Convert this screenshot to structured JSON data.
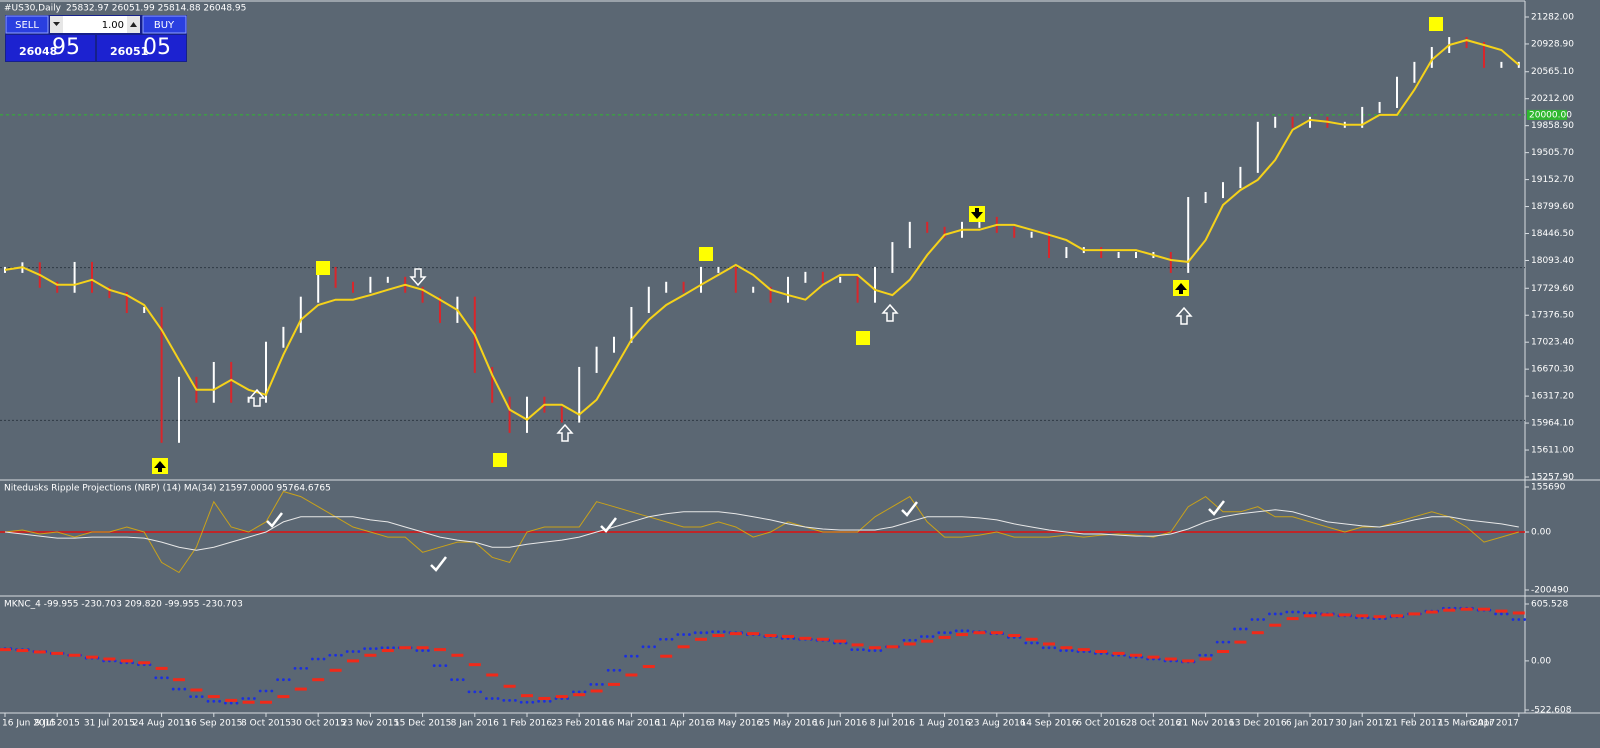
{
  "header": {
    "symbol": "#US30,Daily",
    "ohlc": "25832.97 26051.99 25814.88 26048.95"
  },
  "trade_panel": {
    "sell": "SELL",
    "buy": "BUY",
    "lot": "1.00",
    "bid_big": "26048",
    "bid_small": "95",
    "ask_big": "26051",
    "ask_small": "05"
  },
  "chart_data": [
    {
      "type": "line",
      "categories": [
        "16 Jun 2015",
        null,
        null,
        "9 Jul 2015",
        null,
        null,
        "31 Jul 2015",
        null,
        null,
        "24 Aug 2015",
        null,
        null,
        "16 Sep 2015",
        null,
        null,
        "8 Oct 2015",
        null,
        null,
        "30 Oct 2015",
        null,
        null,
        "23 Nov 2015",
        null,
        null,
        "15 Dec 2015",
        null,
        null,
        "8 Jan 2016",
        null,
        null,
        "1 Feb 2016",
        null,
        null,
        "23 Feb 2016",
        null,
        null,
        "16 Mar 2016",
        null,
        null,
        "11 Apr 2016",
        null,
        null,
        "3 May 2016",
        null,
        null,
        "25 May 2016",
        null,
        null,
        "16 Jun 2016",
        null,
        null,
        "8 Jul 2016",
        null,
        null,
        "1 Aug 2016",
        null,
        null,
        "23 Aug 2016",
        null,
        null,
        "14 Sep 2016",
        null,
        null,
        "6 Oct 2016",
        null,
        null,
        "28 Oct 2016",
        null,
        null,
        "21 Nov 2016",
        null,
        null,
        "13 Dec 2016",
        null,
        null,
        "6 Jan 2017",
        null,
        null,
        "30 Jan 2017",
        null,
        null,
        "21 Feb 2017",
        null,
        null,
        "15 Mar 2017",
        null,
        null,
        "6 Apr 2017"
      ],
      "series": [
        {
          "style": "bars",
          "color": "#ffffff",
          "down_color": "#d9262b",
          "values": [
            17970,
            18030,
            17775,
            17710,
            18035,
            17710,
            17640,
            17445,
            17445,
            15745,
            16530,
            16270,
            16725,
            16270,
            16270,
            16990,
            17185,
            17580,
            17970,
            17775,
            17710,
            17840,
            17840,
            17710,
            17580,
            17315,
            17580,
            16660,
            16270,
            15875,
            16270,
            16140,
            16010,
            16660,
            16925,
            17055,
            17445,
            17710,
            17775,
            17710,
            17970,
            17970,
            17710,
            17710,
            17580,
            17840,
            17905,
            17840,
            17840,
            17580,
            17970,
            18295,
            18560,
            18495,
            18430,
            18560,
            18625,
            18495,
            18430,
            18430,
            18165,
            18230,
            18230,
            18165,
            18165,
            18165,
            18165,
            17970,
            18885,
            18950,
            19080,
            19280,
            19870,
            19935,
            19870,
            19935,
            19870,
            19870,
            20065,
            20130,
            20460,
            20655,
            20850,
            20980,
            20915,
            20655,
            20655,
            20655
          ]
        },
        {
          "style": "line",
          "color": "#f5d21a",
          "values": [
            17970,
            18005,
            17905,
            17775,
            17775,
            17840,
            17710,
            17640,
            17510,
            17185,
            16790,
            16400,
            16400,
            16530,
            16400,
            16335,
            16860,
            17315,
            17510,
            17580,
            17580,
            17640,
            17710,
            17775,
            17710,
            17580,
            17445,
            17120,
            16595,
            16140,
            16010,
            16205,
            16205,
            16075,
            16270,
            16660,
            17055,
            17315,
            17510,
            17640,
            17775,
            17905,
            18035,
            17905,
            17710,
            17640,
            17580,
            17775,
            17905,
            17905,
            17710,
            17640,
            17840,
            18165,
            18430,
            18495,
            18495,
            18560,
            18560,
            18495,
            18430,
            18360,
            18230,
            18230,
            18230,
            18230,
            18165,
            18100,
            18075,
            18360,
            18820,
            19015,
            19150,
            19410,
            19805,
            19935,
            19910,
            19870,
            19870,
            20000,
            20000,
            20330,
            20720,
            20915,
            20980,
            20915,
            20850,
            20655
          ]
        }
      ],
      "ylim": [
        15257.9,
        21282
      ],
      "yticks": [
        {
          "value": 21282,
          "label": "21282.00"
        },
        {
          "value": 20928.9,
          "label": "20928.90"
        },
        {
          "value": 20565.1,
          "label": "20565.10"
        },
        {
          "value": 20212,
          "label": "20212.00"
        },
        {
          "value": 19858.9,
          "label": "19858.90"
        },
        {
          "value": 19505.7,
          "label": "19505.70"
        },
        {
          "value": 19152.7,
          "label": "19152.70"
        },
        {
          "value": 18799.6,
          "label": "18799.60"
        },
        {
          "value": 18446.5,
          "label": "18446.50"
        },
        {
          "value": 18093.4,
          "label": "18093.40"
        },
        {
          "value": 17729.6,
          "label": "17729.60"
        },
        {
          "value": 17376.5,
          "label": "17376.50"
        },
        {
          "value": 17023.4,
          "label": "17023.40"
        },
        {
          "value": 16670.3,
          "label": "16670.30"
        },
        {
          "value": 16317.2,
          "label": "16317.20"
        },
        {
          "value": 15964.1,
          "label": "15964.10"
        },
        {
          "value": 15611,
          "label": "15611.00"
        },
        {
          "value": 15257.9,
          "label": "15257.90"
        }
      ],
      "levels": [
        18000,
        16000
      ],
      "price_line": {
        "value": 20000,
        "label": "20000.00",
        "color": "#2fb82f"
      }
    },
    {
      "type": "line",
      "title": "Nitedusks Ripple Projections (NRP) (14) MA(34) 21597.0000 95764.6765",
      "series": [
        {
          "style": "line",
          "color": "#c9a21a",
          "values": [
            0,
            7000,
            -7000,
            0,
            -17500,
            0,
            0,
            17500,
            0,
            -105000,
            -140000,
            -52500,
            105000,
            17500,
            0,
            35000,
            140000,
            122500,
            87500,
            52500,
            17500,
            0,
            -17500,
            -17500,
            -70000,
            -52500,
            -35000,
            -35000,
            -87500,
            -105000,
            0,
            17500,
            17500,
            17500,
            105000,
            87500,
            70000,
            52500,
            35000,
            17500,
            17500,
            35000,
            17500,
            -17500,
            0,
            35000,
            17500,
            0,
            0,
            0,
            52500,
            87500,
            122500,
            35000,
            -17500,
            -17500,
            -10500,
            0,
            -17500,
            -17500,
            -17500,
            -10500,
            -17500,
            -10500,
            -7000,
            -10500,
            -17500,
            0,
            87500,
            122500,
            70000,
            70000,
            87500,
            52500,
            52500,
            35000,
            17500,
            0,
            17500,
            17500,
            35000,
            52500,
            70000,
            52500,
            17500,
            -35000,
            -17500,
            0
          ]
        },
        {
          "style": "line",
          "color": "#e8e8e8",
          "values": [
            0,
            -7000,
            -14000,
            -21000,
            -21000,
            -17500,
            -17500,
            -17500,
            -21000,
            -35000,
            -52500,
            -63000,
            -52500,
            -35000,
            -17500,
            0,
            35000,
            52500,
            52500,
            52500,
            52500,
            42000,
            35000,
            17500,
            0,
            -17500,
            -28000,
            -35000,
            -52500,
            -52500,
            -42000,
            -35000,
            -28000,
            -17500,
            0,
            17500,
            35000,
            52500,
            63000,
            70000,
            70000,
            70000,
            63000,
            52500,
            42000,
            28000,
            17500,
            10500,
            7000,
            7000,
            7000,
            17500,
            35000,
            52500,
            52500,
            52500,
            49000,
            42000,
            28000,
            17500,
            7000,
            0,
            -7000,
            -7000,
            -10500,
            -14000,
            -14000,
            -7000,
            10500,
            35000,
            52500,
            63000,
            70000,
            77000,
            70000,
            52500,
            35000,
            28000,
            21000,
            17500,
            28000,
            42000,
            52500,
            52500,
            42000,
            35000,
            28000,
            17500
          ]
        }
      ],
      "ylim": [
        -200490,
        155690
      ],
      "yticks": [
        155690,
        {
          "value": 0,
          "label": "0.00"
        },
        -200490
      ],
      "zero_line_color": "#e01010"
    },
    {
      "type": "line",
      "title": "MKNC_4 -99.955 -230.703 209.820 -99.955 -230.703",
      "series": [
        {
          "style": "dots",
          "color": "#1b2fe0",
          "values": [
            130,
            120,
            100,
            80,
            60,
            30,
            0,
            -20,
            -40,
            -180,
            -300,
            -380,
            -430,
            -450,
            -400,
            -320,
            -200,
            -80,
            20,
            60,
            100,
            130,
            140,
            140,
            110,
            -50,
            -200,
            -330,
            -400,
            -420,
            -440,
            -430,
            -400,
            -330,
            -250,
            -100,
            50,
            150,
            230,
            280,
            300,
            310,
            300,
            280,
            260,
            240,
            230,
            220,
            190,
            120,
            110,
            150,
            220,
            260,
            300,
            320,
            310,
            290,
            250,
            190,
            140,
            110,
            100,
            80,
            60,
            40,
            20,
            0,
            -10,
            60,
            200,
            340,
            440,
            500,
            520,
            510,
            500,
            480,
            460,
            450,
            470,
            500,
            530,
            560,
            560,
            540,
            500,
            440
          ]
        },
        {
          "style": "dashes",
          "color": "#f02a1a",
          "values": [
            120,
            110,
            95,
            80,
            60,
            40,
            20,
            0,
            -20,
            -80,
            -200,
            -310,
            -380,
            -420,
            -440,
            -440,
            -380,
            -300,
            -200,
            -100,
            0,
            60,
            110,
            140,
            140,
            120,
            60,
            -40,
            -150,
            -270,
            -370,
            -400,
            -380,
            -360,
            -320,
            -250,
            -150,
            -60,
            50,
            150,
            230,
            270,
            290,
            290,
            270,
            260,
            240,
            230,
            210,
            170,
            140,
            150,
            180,
            210,
            250,
            280,
            300,
            300,
            270,
            230,
            180,
            140,
            120,
            100,
            80,
            60,
            40,
            20,
            0,
            20,
            100,
            200,
            300,
            380,
            450,
            480,
            490,
            490,
            480,
            470,
            480,
            500,
            520,
            540,
            550,
            550,
            530,
            510
          ]
        }
      ],
      "ylim": [
        -522.608,
        605.528
      ],
      "yticks": [
        605.528,
        {
          "value": 0,
          "label": "0.00"
        },
        -522.608
      ]
    }
  ]
}
